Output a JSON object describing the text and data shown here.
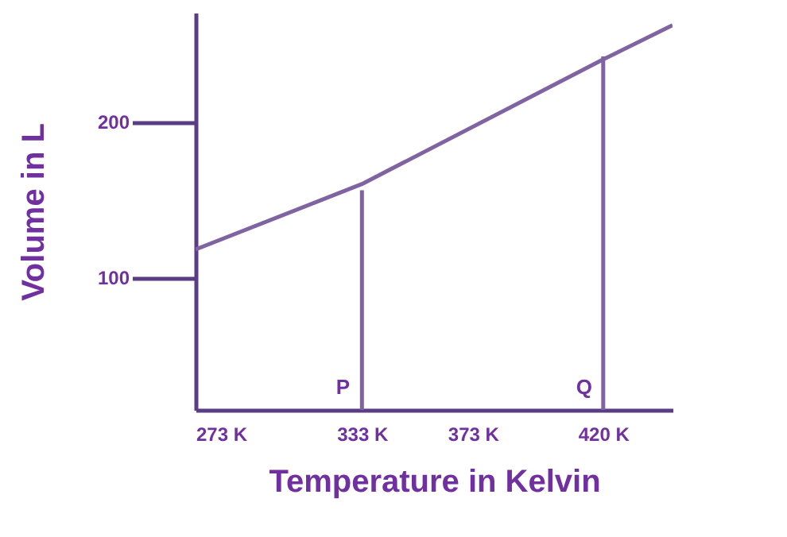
{
  "chart_data": {
    "type": "line",
    "xlabel": "Temperature  in Kelvin",
    "ylabel": "Volume in L",
    "xlim": [
      273,
      445
    ],
    "ylim": [
      15,
      270
    ],
    "xticks": [
      {
        "value": 273,
        "label": "273 K"
      },
      {
        "value": 333,
        "label": "333 K"
      },
      {
        "value": 373,
        "label": "373 K"
      },
      {
        "value": 420,
        "label": "420 K"
      }
    ],
    "yticks": [
      100,
      200
    ],
    "series": [
      {
        "color": "#8064a2",
        "x": [
          273,
          333,
          420,
          445
        ],
        "values": [
          118,
          160,
          240,
          262
        ]
      },
      {
        "color": "#8064a2",
        "x": [
          333,
          333
        ],
        "values": [
          15,
          156
        ]
      },
      {
        "color": "#8064a2",
        "x": [
          420,
          420
        ],
        "values": [
          15,
          242
        ]
      }
    ],
    "annotations": [
      {
        "text": "P",
        "x": 333,
        "y": 22
      },
      {
        "text": "Q",
        "x": 420,
        "y": 22
      }
    ],
    "grid": false,
    "marker": "none",
    "line_style": "solid"
  }
}
